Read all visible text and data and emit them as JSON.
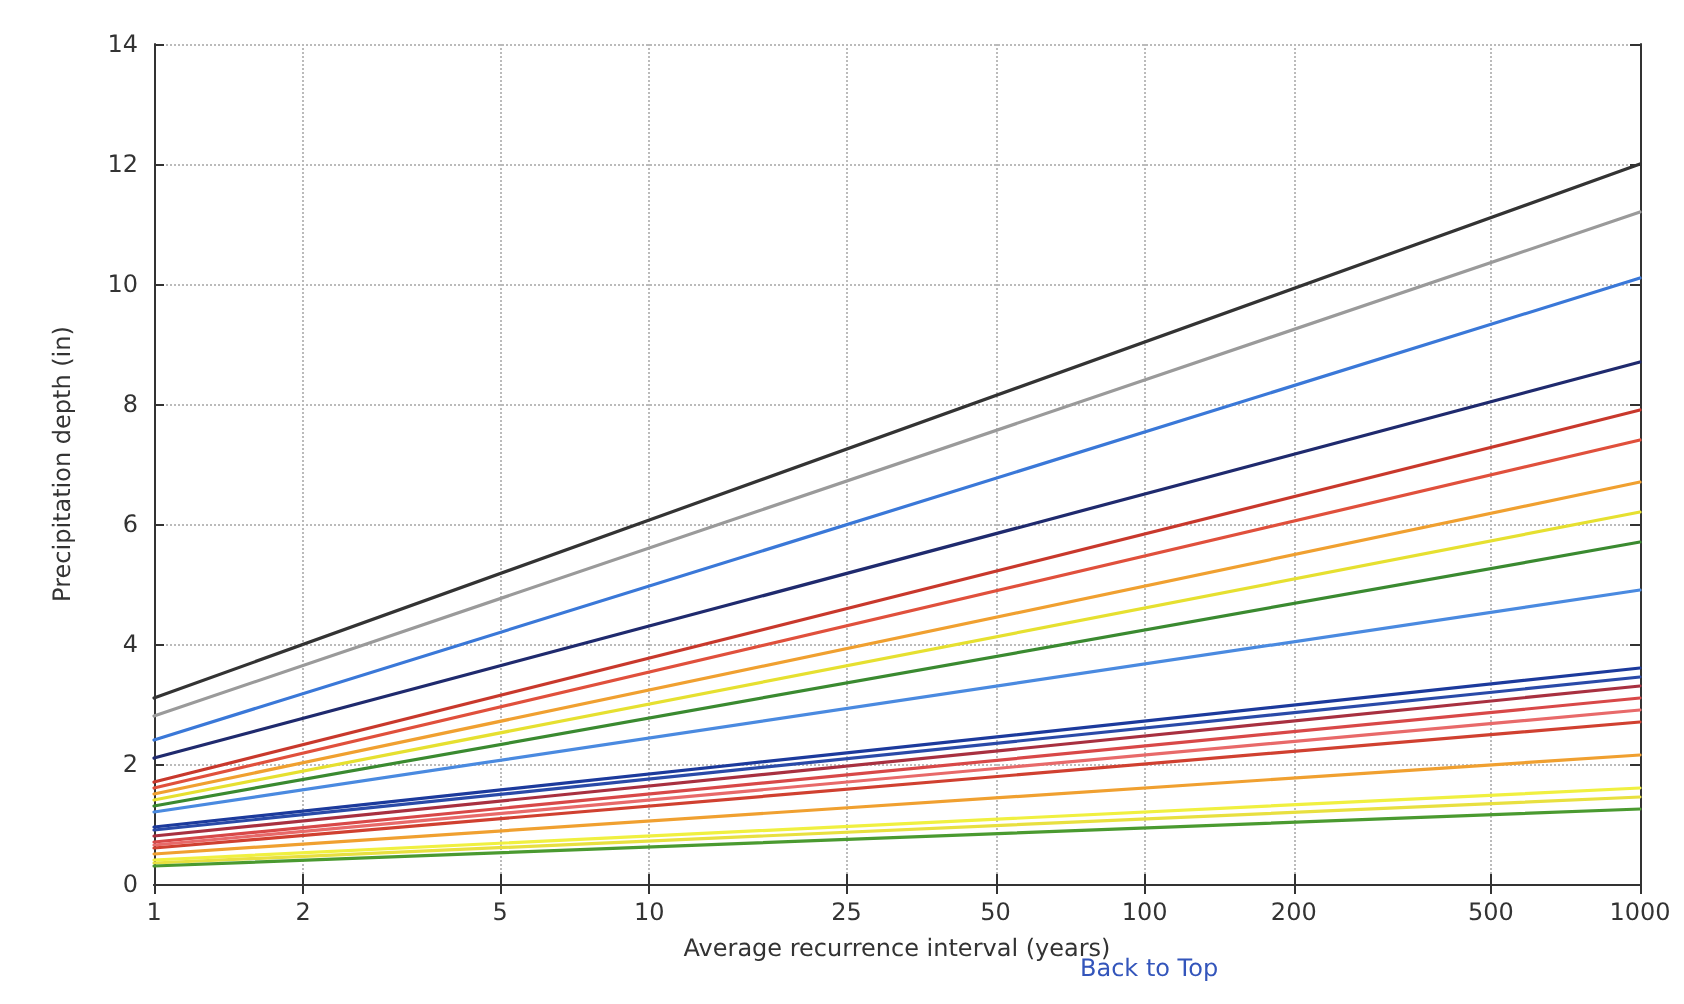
{
  "chart_data": {
    "type": "line",
    "xlabel": "Average recurrence interval (years)",
    "ylabel": "Precipitation depth (in)",
    "annotations": [
      "Back to Top"
    ],
    "log": "x",
    "grid": true,
    "marker": "none",
    "line_style": "solid",
    "x": [
      1,
      1000
    ],
    "xlim": [
      1,
      1000
    ],
    "xticks": [
      1,
      2,
      5,
      10,
      25,
      50,
      100,
      200,
      500,
      1000
    ],
    "ylim": [
      0,
      14
    ],
    "yticks": [
      0,
      2,
      4,
      6,
      8,
      10,
      12,
      14
    ],
    "series": [
      {
        "color": "#333333",
        "values": [
          3.1,
          12.0
        ]
      },
      {
        "color": "#9a9a9a",
        "values": [
          2.8,
          11.2
        ]
      },
      {
        "color": "#3a78d8",
        "values": [
          2.4,
          10.1
        ]
      },
      {
        "color": "#1f2a6e",
        "values": [
          2.1,
          8.7
        ]
      },
      {
        "color": "#c8382c",
        "values": [
          1.7,
          7.9
        ]
      },
      {
        "color": "#e0503c",
        "values": [
          1.6,
          7.4
        ]
      },
      {
        "color": "#f0a030",
        "values": [
          1.5,
          6.7
        ]
      },
      {
        "color": "#e6e030",
        "values": [
          1.4,
          6.2
        ]
      },
      {
        "color": "#3a8a30",
        "values": [
          1.3,
          5.7
        ]
      },
      {
        "color": "#4a8ae0",
        "values": [
          1.2,
          4.9
        ]
      },
      {
        "color": "#1c3a9c",
        "values": [
          0.95,
          3.6
        ]
      },
      {
        "color": "#2a4aa8",
        "values": [
          0.9,
          3.45
        ]
      },
      {
        "color": "#a83040",
        "values": [
          0.8,
          3.3
        ]
      },
      {
        "color": "#d84848",
        "values": [
          0.7,
          3.1
        ]
      },
      {
        "color": "#e86a6a",
        "values": [
          0.65,
          2.9
        ]
      },
      {
        "color": "#d04030",
        "values": [
          0.6,
          2.7
        ]
      },
      {
        "color": "#f0a030",
        "values": [
          0.5,
          2.15
        ]
      },
      {
        "color": "#f0f040",
        "values": [
          0.4,
          1.6
        ]
      },
      {
        "color": "#e8e040",
        "values": [
          0.35,
          1.45
        ]
      },
      {
        "color": "#4a9a30",
        "values": [
          0.3,
          1.25
        ]
      }
    ]
  }
}
